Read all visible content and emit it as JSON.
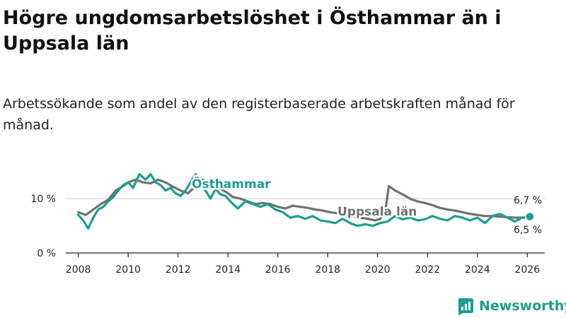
{
  "title": "Högre ungdomsarbetslöshet i Östhammar än i Uppsala län",
  "subtitle": "Arbetssökande som andel av den registerbaserade arbetskraften månad för månad.",
  "brand": "Newsworthy",
  "colors": {
    "osthammar": "#1a9e8f",
    "uppsala": "#707070",
    "axis": "#222222",
    "brand": "#1a9e8f"
  },
  "chart_data": {
    "type": "line",
    "title": "",
    "xlabel": "",
    "ylabel": "",
    "xlim": [
      2007.5,
      2026.7
    ],
    "ylim": [
      0,
      16
    ],
    "x_ticks": [
      2008,
      2010,
      2012,
      2014,
      2016,
      2018,
      2020,
      2022,
      2024,
      2026
    ],
    "x_tick_labels": [
      "2008",
      "2010",
      "2012",
      "2014",
      "2016",
      "2018",
      "2020",
      "2022",
      "2024",
      "2026"
    ],
    "y_ticks": [
      0,
      10
    ],
    "y_tick_labels": [
      "0 %",
      "10 %"
    ],
    "grid": true,
    "series": [
      {
        "name": "Uppsala län",
        "label": "Uppsala län",
        "color": "#707070",
        "end_label": "6,5 %",
        "x": [
          2008.0,
          2008.3,
          2008.6,
          2008.9,
          2009.2,
          2009.5,
          2009.8,
          2010.0,
          2010.3,
          2010.6,
          2010.9,
          2011.2,
          2011.5,
          2011.8,
          2012.1,
          2012.4,
          2012.7,
          2013.0,
          2013.3,
          2013.6,
          2013.9,
          2014.2,
          2014.5,
          2014.8,
          2015.1,
          2015.4,
          2015.7,
          2016.0,
          2016.3,
          2016.6,
          2016.9,
          2017.2,
          2017.5,
          2017.8,
          2018.1,
          2018.4,
          2018.7,
          2019.0,
          2019.3,
          2019.6,
          2019.9,
          2020.1,
          2020.3,
          2020.45,
          2020.7,
          2021.0,
          2021.3,
          2021.6,
          2021.9,
          2022.2,
          2022.5,
          2022.8,
          2023.1,
          2023.4,
          2023.7,
          2024.0,
          2024.3,
          2024.6,
          2024.9,
          2025.2,
          2025.5,
          2025.8,
          2026.1
        ],
        "values": [
          7.5,
          7.0,
          8.0,
          9.0,
          9.8,
          11.5,
          12.3,
          13.0,
          13.5,
          13.0,
          12.8,
          13.5,
          13.0,
          12.2,
          11.5,
          11.0,
          12.3,
          13.5,
          12.5,
          12.0,
          11.3,
          10.3,
          10.0,
          9.5,
          9.0,
          9.2,
          9.0,
          8.5,
          8.2,
          8.7,
          8.5,
          8.3,
          8.0,
          7.8,
          7.5,
          7.3,
          7.0,
          6.8,
          6.5,
          6.3,
          6.0,
          6.3,
          7.5,
          12.3,
          11.5,
          10.8,
          10.0,
          9.5,
          9.2,
          8.8,
          8.3,
          8.0,
          7.8,
          7.5,
          7.2,
          7.0,
          6.8,
          6.8,
          6.7,
          6.6,
          6.5,
          6.5,
          6.5
        ]
      },
      {
        "name": "Östhammar",
        "label": "Östhammar",
        "color": "#1a9e8f",
        "end_label": "6,7 %",
        "x": [
          2008.0,
          2008.2,
          2008.4,
          2008.6,
          2008.8,
          2009.0,
          2009.2,
          2009.4,
          2009.6,
          2009.8,
          2010.0,
          2010.2,
          2010.45,
          2010.7,
          2010.9,
          2011.1,
          2011.3,
          2011.5,
          2011.7,
          2011.9,
          2012.1,
          2012.3,
          2012.5,
          2012.7,
          2012.9,
          2013.1,
          2013.3,
          2013.5,
          2013.7,
          2013.9,
          2014.2,
          2014.4,
          2014.7,
          2015.0,
          2015.3,
          2015.6,
          2015.9,
          2016.2,
          2016.5,
          2016.8,
          2017.1,
          2017.4,
          2017.7,
          2018.0,
          2018.3,
          2018.6,
          2018.9,
          2019.2,
          2019.5,
          2019.8,
          2020.1,
          2020.4,
          2020.7,
          2021.0,
          2021.3,
          2021.6,
          2021.9,
          2022.2,
          2022.5,
          2022.8,
          2023.1,
          2023.4,
          2023.7,
          2024.0,
          2024.3,
          2024.6,
          2024.9,
          2025.2,
          2025.5,
          2025.8,
          2026.1
        ],
        "values": [
          7.0,
          6.0,
          4.5,
          6.5,
          8.0,
          8.5,
          9.5,
          10.3,
          11.5,
          12.5,
          13.0,
          12.0,
          14.5,
          13.5,
          14.5,
          13.0,
          12.5,
          11.5,
          12.0,
          11.0,
          10.5,
          11.5,
          13.0,
          14.5,
          12.5,
          11.5,
          10.0,
          11.8,
          10.8,
          10.5,
          9.0,
          8.2,
          9.5,
          9.0,
          8.5,
          9.0,
          8.0,
          7.5,
          6.5,
          6.8,
          6.3,
          6.8,
          6.0,
          5.8,
          5.5,
          6.3,
          5.5,
          5.0,
          5.3,
          5.0,
          5.5,
          5.8,
          6.8,
          6.2,
          6.5,
          6.0,
          6.2,
          6.8,
          6.3,
          6.0,
          6.8,
          6.5,
          6.0,
          6.5,
          5.5,
          6.8,
          7.2,
          6.5,
          5.8,
          6.5,
          6.7
        ]
      }
    ]
  }
}
